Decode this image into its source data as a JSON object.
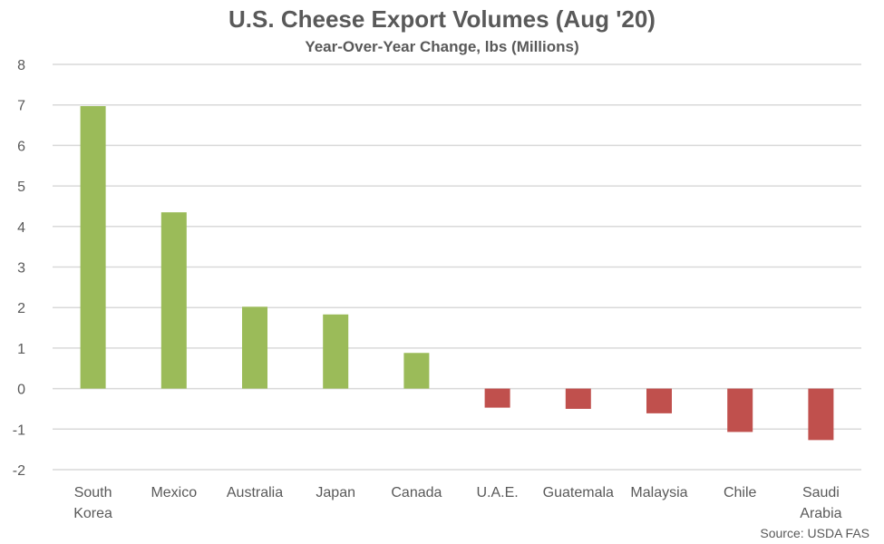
{
  "chart_data": {
    "type": "bar",
    "title": "U.S. Cheese Export Volumes (Aug '20)",
    "subtitle": "Year-Over-Year Change, lbs (Millions)",
    "categories": [
      [
        "South",
        "Korea"
      ],
      [
        "Mexico"
      ],
      [
        "Australia"
      ],
      [
        "Japan"
      ],
      [
        "Canada"
      ],
      [
        "U.A.E."
      ],
      [
        "Guatemala"
      ],
      [
        "Malaysia"
      ],
      [
        "Chile"
      ],
      [
        "Saudi",
        "Arabia"
      ]
    ],
    "values": [
      6.97,
      4.35,
      2.02,
      1.83,
      0.88,
      -0.47,
      -0.5,
      -0.61,
      -1.07,
      -1.27
    ],
    "ylim": [
      -2,
      8
    ],
    "yticks": [
      -2,
      -1,
      0,
      1,
      2,
      3,
      4,
      5,
      6,
      7,
      8
    ],
    "grid": true,
    "colors": {
      "positive": "#9BBB59",
      "negative": "#C0504D",
      "grid": "#D9D9D9",
      "text": "#595959"
    },
    "source": "Source: USDA FAS"
  }
}
